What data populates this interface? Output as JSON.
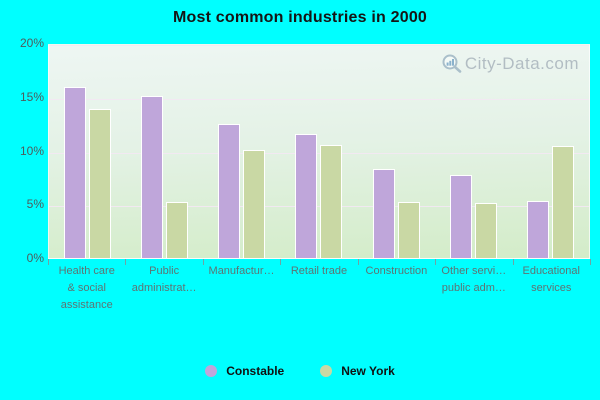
{
  "title": "Most common industries in 2000",
  "watermark": {
    "text": "City-Data.com"
  },
  "legend": {
    "items": [
      {
        "label": "Constable",
        "color": "#bfa6da"
      },
      {
        "label": "New York",
        "color": "#c9d8a4"
      }
    ]
  },
  "chart_data": {
    "type": "bar",
    "title": "Most common industries in 2000",
    "categories": [
      "Health care & social assistance",
      "Public administrat…",
      "Manufactur…",
      "Retail trade",
      "Construction",
      "Other servi… public adm…",
      "Educational services"
    ],
    "category_lines": [
      [
        "Health care",
        "& social",
        "assistance"
      ],
      [
        "Public",
        "administrat…"
      ],
      [
        "Manufactur…"
      ],
      [
        "Retail trade"
      ],
      [
        "Construction"
      ],
      [
        "Other servi…",
        "public adm…"
      ],
      [
        "Educational",
        "services"
      ]
    ],
    "series": [
      {
        "name": "Constable",
        "color": "#bfa6da",
        "values": [
          15.8,
          15.0,
          12.4,
          11.4,
          8.2,
          7.6,
          5.2
        ]
      },
      {
        "name": "New York",
        "color": "#c9d8a4",
        "values": [
          13.8,
          5.1,
          10.0,
          10.4,
          5.1,
          5.0,
          10.3
        ]
      }
    ],
    "xlabel": "",
    "ylabel": "",
    "ylim": [
      0,
      20
    ],
    "yticks": [
      {
        "value": 0,
        "label": "0%"
      },
      {
        "value": 5,
        "label": "5%"
      },
      {
        "value": 10,
        "label": "10%"
      },
      {
        "value": 15,
        "label": "15%"
      },
      {
        "value": 20,
        "label": "20%"
      }
    ],
    "grid": true,
    "legend_position": "bottom"
  }
}
